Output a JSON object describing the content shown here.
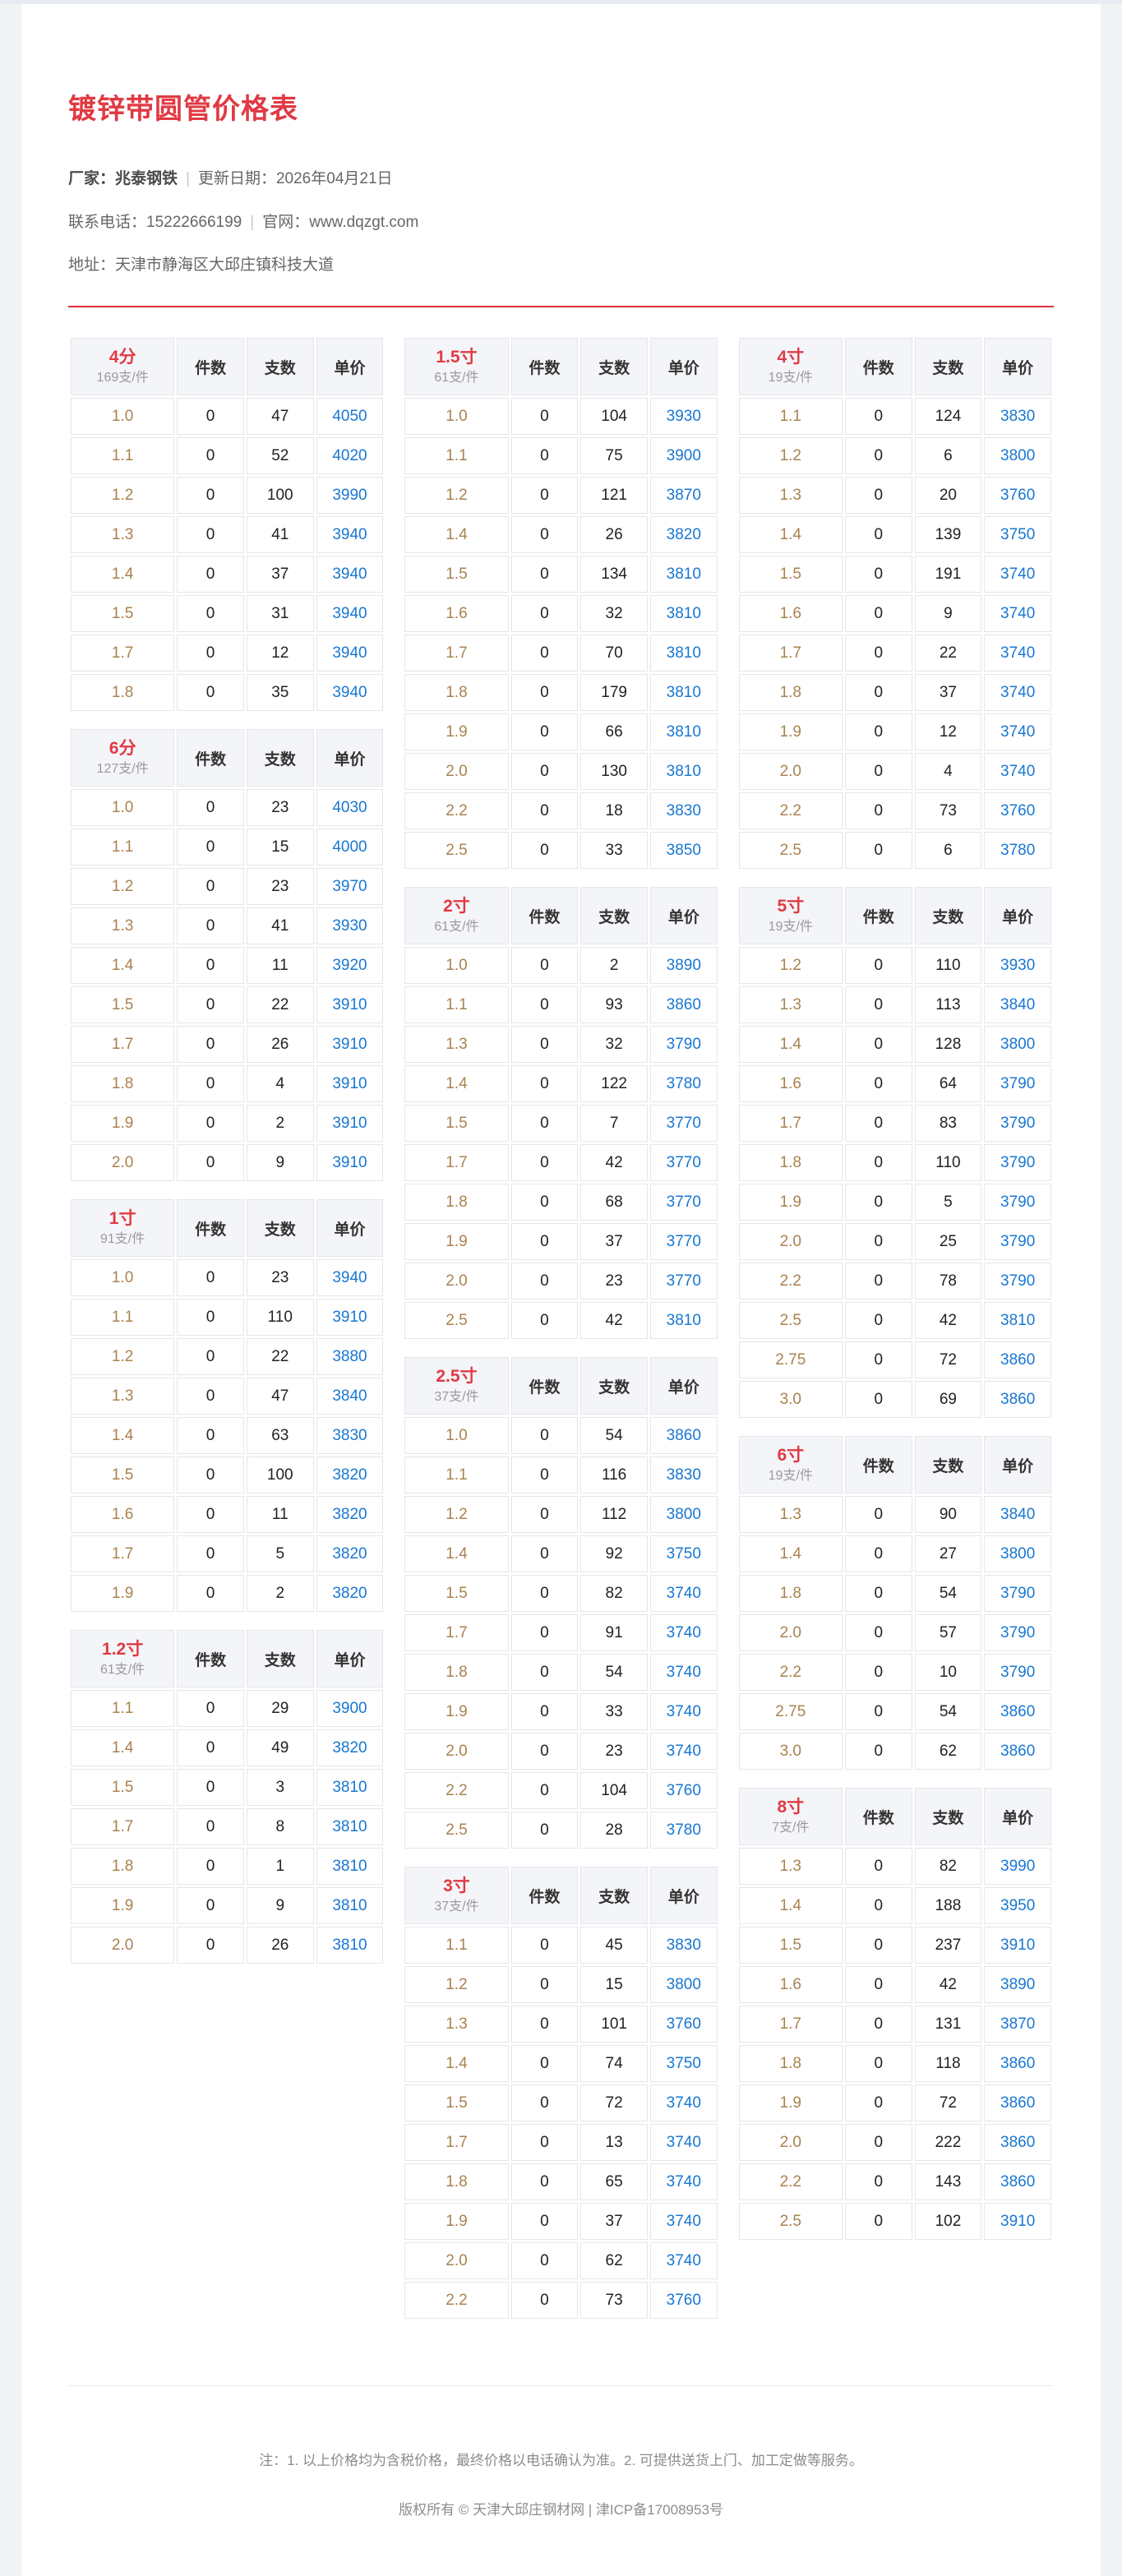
{
  "page": {
    "title": "镀锌带圆管价格表",
    "info": {
      "separator": "|",
      "manufacturer_label": "厂家：",
      "manufacturer": "兆泰钢铁",
      "update_label": "更新日期：",
      "update_date": "2026年04月21日",
      "phone_label": "联系电话：",
      "phone": "15222666199",
      "website_label": "官网：",
      "website": "www.dqzgt.com",
      "address_label": "地址：",
      "address": "天津市静海区大邱庄镇科技大道"
    },
    "footer": {
      "note": "注：1. 以上价格均为含税价格，最终价格以电话确认为准。2. 可提供送货上门、加工定做等服务。",
      "copyright": "版权所有 © 天津大邱庄钢材网 | 津ICP备17008953号"
    },
    "colors": {
      "accent_red": "#e03a44",
      "price_blue": "#1877d2",
      "spec_brown": "#a9824f",
      "header_bg": "#f4f5f8"
    }
  },
  "table_headers": {
    "qty_label": "件数",
    "pieces_label": "支数",
    "price_label": "单价"
  },
  "tables": [
    {
      "size": "4分",
      "spec": "169支/件",
      "column": 0,
      "rows": [
        [
          "1.0",
          "0",
          "47",
          "4050"
        ],
        [
          "1.1",
          "0",
          "52",
          "4020"
        ],
        [
          "1.2",
          "0",
          "100",
          "3990"
        ],
        [
          "1.3",
          "0",
          "41",
          "3940"
        ],
        [
          "1.4",
          "0",
          "37",
          "3940"
        ],
        [
          "1.5",
          "0",
          "31",
          "3940"
        ],
        [
          "1.7",
          "0",
          "12",
          "3940"
        ],
        [
          "1.8",
          "0",
          "35",
          "3940"
        ]
      ]
    },
    {
      "size": "6分",
      "spec": "127支/件",
      "column": 0,
      "rows": [
        [
          "1.0",
          "0",
          "23",
          "4030"
        ],
        [
          "1.1",
          "0",
          "15",
          "4000"
        ],
        [
          "1.2",
          "0",
          "23",
          "3970"
        ],
        [
          "1.3",
          "0",
          "41",
          "3930"
        ],
        [
          "1.4",
          "0",
          "11",
          "3920"
        ],
        [
          "1.5",
          "0",
          "22",
          "3910"
        ],
        [
          "1.7",
          "0",
          "26",
          "3910"
        ],
        [
          "1.8",
          "0",
          "4",
          "3910"
        ],
        [
          "1.9",
          "0",
          "2",
          "3910"
        ],
        [
          "2.0",
          "0",
          "9",
          "3910"
        ]
      ]
    },
    {
      "size": "1寸",
      "spec": "91支/件",
      "column": 0,
      "rows": [
        [
          "1.0",
          "0",
          "23",
          "3940"
        ],
        [
          "1.1",
          "0",
          "110",
          "3910"
        ],
        [
          "1.2",
          "0",
          "22",
          "3880"
        ],
        [
          "1.3",
          "0",
          "47",
          "3840"
        ],
        [
          "1.4",
          "0",
          "63",
          "3830"
        ],
        [
          "1.5",
          "0",
          "100",
          "3820"
        ],
        [
          "1.6",
          "0",
          "11",
          "3820"
        ],
        [
          "1.7",
          "0",
          "5",
          "3820"
        ],
        [
          "1.9",
          "0",
          "2",
          "3820"
        ]
      ]
    },
    {
      "size": "1.2寸",
      "spec": "61支/件",
      "column": 0,
      "rows": [
        [
          "1.1",
          "0",
          "29",
          "3900"
        ],
        [
          "1.4",
          "0",
          "49",
          "3820"
        ],
        [
          "1.5",
          "0",
          "3",
          "3810"
        ],
        [
          "1.7",
          "0",
          "8",
          "3810"
        ],
        [
          "1.8",
          "0",
          "1",
          "3810"
        ],
        [
          "1.9",
          "0",
          "9",
          "3810"
        ],
        [
          "2.0",
          "0",
          "26",
          "3810"
        ]
      ]
    },
    {
      "size": "1.5寸",
      "spec": "61支/件",
      "column": 1,
      "rows": [
        [
          "1.0",
          "0",
          "104",
          "3930"
        ],
        [
          "1.1",
          "0",
          "75",
          "3900"
        ],
        [
          "1.2",
          "0",
          "121",
          "3870"
        ],
        [
          "1.4",
          "0",
          "26",
          "3820"
        ],
        [
          "1.5",
          "0",
          "134",
          "3810"
        ],
        [
          "1.6",
          "0",
          "32",
          "3810"
        ],
        [
          "1.7",
          "0",
          "70",
          "3810"
        ],
        [
          "1.8",
          "0",
          "179",
          "3810"
        ],
        [
          "1.9",
          "0",
          "66",
          "3810"
        ],
        [
          "2.0",
          "0",
          "130",
          "3810"
        ],
        [
          "2.2",
          "0",
          "18",
          "3830"
        ],
        [
          "2.5",
          "0",
          "33",
          "3850"
        ]
      ]
    },
    {
      "size": "2寸",
      "spec": "61支/件",
      "column": 1,
      "rows": [
        [
          "1.0",
          "0",
          "2",
          "3890"
        ],
        [
          "1.1",
          "0",
          "93",
          "3860"
        ],
        [
          "1.3",
          "0",
          "32",
          "3790"
        ],
        [
          "1.4",
          "0",
          "122",
          "3780"
        ],
        [
          "1.5",
          "0",
          "7",
          "3770"
        ],
        [
          "1.7",
          "0",
          "42",
          "3770"
        ],
        [
          "1.8",
          "0",
          "68",
          "3770"
        ],
        [
          "1.9",
          "0",
          "37",
          "3770"
        ],
        [
          "2.0",
          "0",
          "23",
          "3770"
        ],
        [
          "2.5",
          "0",
          "42",
          "3810"
        ]
      ]
    },
    {
      "size": "2.5寸",
      "spec": "37支/件",
      "column": 1,
      "rows": [
        [
          "1.0",
          "0",
          "54",
          "3860"
        ],
        [
          "1.1",
          "0",
          "116",
          "3830"
        ],
        [
          "1.2",
          "0",
          "112",
          "3800"
        ],
        [
          "1.4",
          "0",
          "92",
          "3750"
        ],
        [
          "1.5",
          "0",
          "82",
          "3740"
        ],
        [
          "1.7",
          "0",
          "91",
          "3740"
        ],
        [
          "1.8",
          "0",
          "54",
          "3740"
        ],
        [
          "1.9",
          "0",
          "33",
          "3740"
        ],
        [
          "2.0",
          "0",
          "23",
          "3740"
        ],
        [
          "2.2",
          "0",
          "104",
          "3760"
        ],
        [
          "2.5",
          "0",
          "28",
          "3780"
        ]
      ]
    },
    {
      "size": "3寸",
      "spec": "37支/件",
      "column": 1,
      "rows": [
        [
          "1.1",
          "0",
          "45",
          "3830"
        ],
        [
          "1.2",
          "0",
          "15",
          "3800"
        ],
        [
          "1.3",
          "0",
          "101",
          "3760"
        ],
        [
          "1.4",
          "0",
          "74",
          "3750"
        ],
        [
          "1.5",
          "0",
          "72",
          "3740"
        ],
        [
          "1.7",
          "0",
          "13",
          "3740"
        ],
        [
          "1.8",
          "0",
          "65",
          "3740"
        ],
        [
          "1.9",
          "0",
          "37",
          "3740"
        ],
        [
          "2.0",
          "0",
          "62",
          "3740"
        ],
        [
          "2.2",
          "0",
          "73",
          "3760"
        ]
      ]
    },
    {
      "size": "4寸",
      "spec": "19支/件",
      "column": 2,
      "rows": [
        [
          "1.1",
          "0",
          "124",
          "3830"
        ],
        [
          "1.2",
          "0",
          "6",
          "3800"
        ],
        [
          "1.3",
          "0",
          "20",
          "3760"
        ],
        [
          "1.4",
          "0",
          "139",
          "3750"
        ],
        [
          "1.5",
          "0",
          "191",
          "3740"
        ],
        [
          "1.6",
          "0",
          "9",
          "3740"
        ],
        [
          "1.7",
          "0",
          "22",
          "3740"
        ],
        [
          "1.8",
          "0",
          "37",
          "3740"
        ],
        [
          "1.9",
          "0",
          "12",
          "3740"
        ],
        [
          "2.0",
          "0",
          "4",
          "3740"
        ],
        [
          "2.2",
          "0",
          "73",
          "3760"
        ],
        [
          "2.5",
          "0",
          "6",
          "3780"
        ]
      ]
    },
    {
      "size": "5寸",
      "spec": "19支/件",
      "column": 2,
      "rows": [
        [
          "1.2",
          "0",
          "110",
          "3930"
        ],
        [
          "1.3",
          "0",
          "113",
          "3840"
        ],
        [
          "1.4",
          "0",
          "128",
          "3800"
        ],
        [
          "1.6",
          "0",
          "64",
          "3790"
        ],
        [
          "1.7",
          "0",
          "83",
          "3790"
        ],
        [
          "1.8",
          "0",
          "110",
          "3790"
        ],
        [
          "1.9",
          "0",
          "5",
          "3790"
        ],
        [
          "2.0",
          "0",
          "25",
          "3790"
        ],
        [
          "2.2",
          "0",
          "78",
          "3790"
        ],
        [
          "2.5",
          "0",
          "42",
          "3810"
        ],
        [
          "2.75",
          "0",
          "72",
          "3860"
        ],
        [
          "3.0",
          "0",
          "69",
          "3860"
        ]
      ]
    },
    {
      "size": "6寸",
      "spec": "19支/件",
      "column": 2,
      "rows": [
        [
          "1.3",
          "0",
          "90",
          "3840"
        ],
        [
          "1.4",
          "0",
          "27",
          "3800"
        ],
        [
          "1.8",
          "0",
          "54",
          "3790"
        ],
        [
          "2.0",
          "0",
          "57",
          "3790"
        ],
        [
          "2.2",
          "0",
          "10",
          "3790"
        ],
        [
          "2.75",
          "0",
          "54",
          "3860"
        ],
        [
          "3.0",
          "0",
          "62",
          "3860"
        ]
      ]
    },
    {
      "size": "8寸",
      "spec": "7支/件",
      "column": 2,
      "rows": [
        [
          "1.3",
          "0",
          "82",
          "3990"
        ],
        [
          "1.4",
          "0",
          "188",
          "3950"
        ],
        [
          "1.5",
          "0",
          "237",
          "3910"
        ],
        [
          "1.6",
          "0",
          "42",
          "3890"
        ],
        [
          "1.7",
          "0",
          "131",
          "3870"
        ],
        [
          "1.8",
          "0",
          "118",
          "3860"
        ],
        [
          "1.9",
          "0",
          "72",
          "3860"
        ],
        [
          "2.0",
          "0",
          "222",
          "3860"
        ],
        [
          "2.2",
          "0",
          "143",
          "3860"
        ],
        [
          "2.5",
          "0",
          "102",
          "3910"
        ]
      ]
    }
  ]
}
